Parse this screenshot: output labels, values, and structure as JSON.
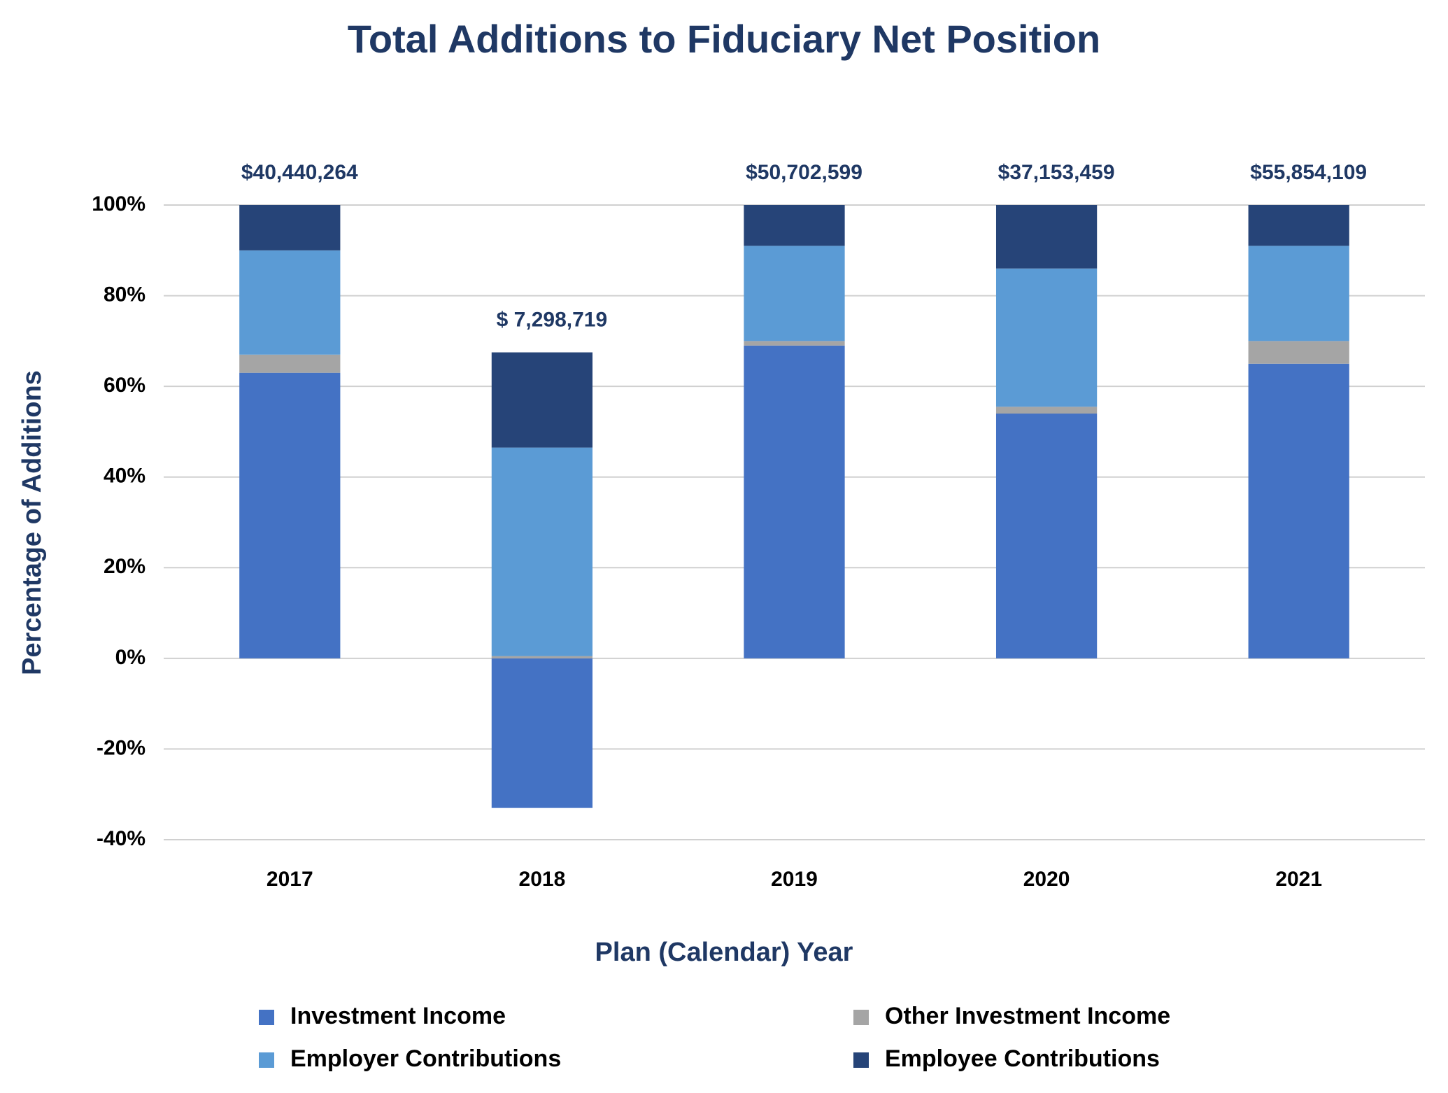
{
  "chart_data": {
    "type": "stacked_bar",
    "title": "Total Additions to Fiduciary Net Position",
    "xlabel": "Plan (Calendar) Year",
    "ylabel": "Percentage of Additions",
    "categories": [
      "2017",
      "2018",
      "2019",
      "2020",
      "2021"
    ],
    "annotations": [
      "$40,440,264",
      "$  7,298,719",
      "$50,702,599",
      "$37,153,459",
      "$55,854,109"
    ],
    "series": [
      {
        "name": "Investment Income",
        "color": "#4472c4",
        "values": [
          63,
          -33,
          69,
          54,
          65
        ]
      },
      {
        "name": "Other Investment Income",
        "color": "#a5a5a5",
        "values": [
          4,
          0.5,
          1,
          1.5,
          5
        ]
      },
      {
        "name": "Employer Contributions",
        "color": "#5b9bd5",
        "values": [
          23,
          46,
          21,
          30.5,
          21
        ]
      },
      {
        "name": "Employee Contributions",
        "color": "#264478",
        "values": [
          10,
          21,
          9,
          14,
          9
        ]
      }
    ],
    "ylim": [
      -40,
      100
    ],
    "yticks": [
      {
        "value": -40,
        "label": "-40%"
      },
      {
        "value": -20,
        "label": "-20%"
      },
      {
        "value": 0,
        "label": "0%"
      },
      {
        "value": 20,
        "label": "20%"
      },
      {
        "value": 40,
        "label": "40%"
      },
      {
        "value": 60,
        "label": "60%"
      },
      {
        "value": 80,
        "label": "80%"
      },
      {
        "value": 100,
        "label": "100%"
      }
    ],
    "grid": true,
    "legend": "bottom"
  }
}
